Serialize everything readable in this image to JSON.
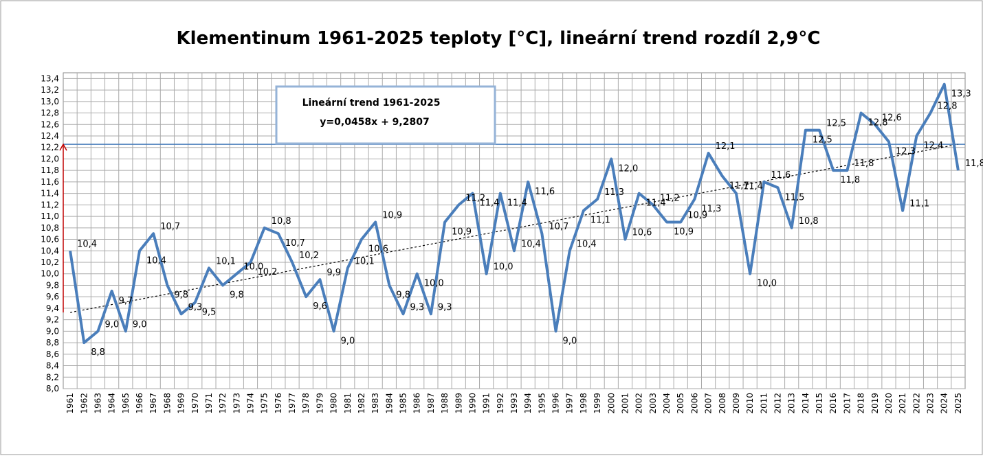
{
  "chart_data": {
    "type": "line",
    "title": "Klementinum 1961-2025  teploty [°C], lineární trend rozdíl 2,9°C",
    "annotation": [
      "Lineární  trend 1961-2025",
      "y=0,0458x + 9,2807"
    ],
    "categories": [
      "1961",
      "1962",
      "1963",
      "1964",
      "1965",
      "1966",
      "1967",
      "1968",
      "1969",
      "1970",
      "1971",
      "1972",
      "1973",
      "1974",
      "1975",
      "1976",
      "1977",
      "1978",
      "1979",
      "1980",
      "1981",
      "1982",
      "1983",
      "1984",
      "1985",
      "1986",
      "1987",
      "1988",
      "1989",
      "1990",
      "1991",
      "1992",
      "1993",
      "1994",
      "1995",
      "1996",
      "1997",
      "1998",
      "1999",
      "2000",
      "2001",
      "2002",
      "2003",
      "2004",
      "2005",
      "2006",
      "2007",
      "2008",
      "2009",
      "2010",
      "2011",
      "2012",
      "2013",
      "2014",
      "2015",
      "2016",
      "2017",
      "2018",
      "2019",
      "2020",
      "2021",
      "2022",
      "2023",
      "2024",
      "2025"
    ],
    "series": [
      {
        "color": "#4a7ebb",
        "values": [
          10.4,
          8.8,
          9.0,
          9.7,
          9.0,
          10.4,
          10.7,
          9.8,
          9.3,
          9.5,
          10.1,
          9.8,
          10.0,
          10.2,
          10.8,
          10.7,
          10.2,
          9.6,
          9.9,
          9.0,
          10.1,
          10.6,
          10.9,
          9.8,
          9.3,
          10.0,
          9.3,
          10.9,
          11.2,
          11.4,
          10.0,
          11.4,
          10.4,
          11.6,
          10.7,
          9.0,
          10.4,
          11.1,
          11.3,
          12.0,
          10.6,
          11.4,
          11.2,
          10.9,
          10.9,
          11.3,
          12.1,
          11.7,
          11.4,
          10.0,
          11.6,
          11.5,
          10.8,
          12.5,
          12.5,
          11.8,
          11.8,
          12.8,
          12.6,
          12.3,
          11.1,
          12.4,
          12.8,
          13.3,
          11.8
        ],
        "value_labels": [
          "10,4",
          "8,8",
          "9,0",
          "9,7",
          "9,0",
          "10,4",
          "10,7",
          "9,8",
          "9,3",
          "9,5",
          "10,1",
          "9,8",
          "10,0",
          "10,2",
          "10,8",
          "10,7",
          "10,2",
          "9,6",
          "9,9",
          "9,0",
          "10,1",
          "10,6",
          "10,9",
          "9,8",
          "9,3",
          "10,0",
          "9,3",
          "10,9",
          "11,2",
          "11,4",
          "10,0",
          "11,4",
          "10,4",
          "11,6",
          "10,7",
          "9,0",
          "10,4",
          "11,1",
          "11,3",
          "12,0",
          "10,6",
          "11,4",
          "11,2",
          "10,9",
          "10,9",
          "11,3",
          "12,1",
          "11,7",
          "11,4",
          "10,0",
          "11,6",
          "11,5",
          "10,8",
          "12,5",
          "12,5",
          "11,8",
          "11,8",
          "12,8",
          "12,6",
          "12,3",
          "11,1",
          "12,4",
          "12,8",
          "13,3",
          "11,8"
        ]
      }
    ],
    "ylim": [
      8.0,
      13.5
    ],
    "yticks": [
      {
        "value": 8.0,
        "label": "8,0"
      },
      {
        "value": 8.2,
        "label": "8,2"
      },
      {
        "value": 8.4,
        "label": "8,4"
      },
      {
        "value": 8.6,
        "label": "8,6"
      },
      {
        "value": 8.8,
        "label": "8,8"
      },
      {
        "value": 9.0,
        "label": "9,0"
      },
      {
        "value": 9.2,
        "label": "9,2"
      },
      {
        "value": 9.4,
        "label": "9,4"
      },
      {
        "value": 9.6,
        "label": "9,6"
      },
      {
        "value": 9.8,
        "label": "9,8"
      },
      {
        "value": 10.0,
        "label": "10,0"
      },
      {
        "value": 10.2,
        "label": "10,2"
      },
      {
        "value": 10.4,
        "label": "10,4"
      },
      {
        "value": 10.6,
        "label": "10,6"
      },
      {
        "value": 10.8,
        "label": "10,8"
      },
      {
        "value": 11.0,
        "label": "11,0"
      },
      {
        "value": 11.2,
        "label": "11,2"
      },
      {
        "value": 11.4,
        "label": "11,4"
      },
      {
        "value": 11.6,
        "label": "11,6"
      },
      {
        "value": 11.8,
        "label": "11,8"
      },
      {
        "value": 12.0,
        "label": "12,0"
      },
      {
        "value": 12.2,
        "label": "12,2"
      },
      {
        "value": 12.4,
        "label": "12,4"
      },
      {
        "value": 12.6,
        "label": "12,6"
      },
      {
        "value": 12.8,
        "label": "12,8"
      },
      {
        "value": 13.0,
        "label": "13,0"
      },
      {
        "value": 13.2,
        "label": "13,2"
      },
      {
        "value": 13.4,
        "label": "13,4"
      }
    ],
    "grid": true
  }
}
